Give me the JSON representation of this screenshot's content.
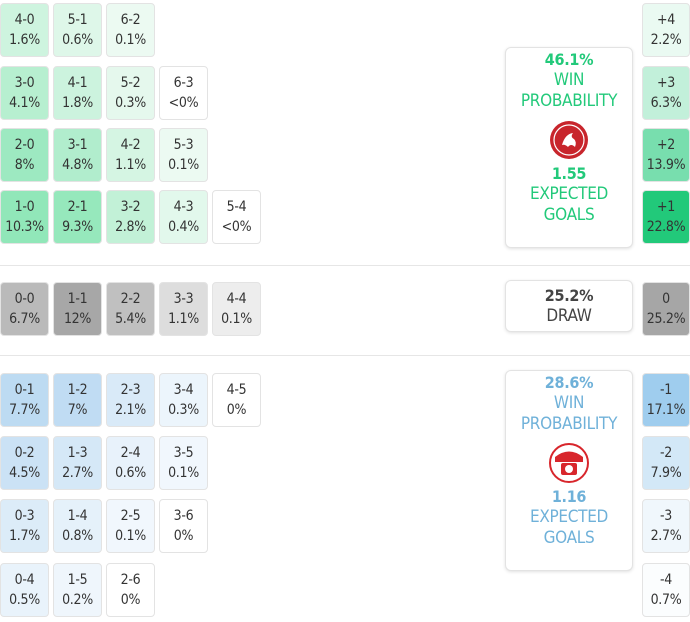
{
  "chart_data": {
    "type": "table",
    "home": {
      "win_probability": "46.1%",
      "win_label": "WIN PROBABILITY",
      "expected_goals": "1.55",
      "xg_label": "EXPECTED GOALS",
      "color": "#22c97a",
      "scores": [
        [
          "4-0",
          "1.6%"
        ],
        [
          "5-1",
          "0.6%"
        ],
        [
          "6-2",
          "0.1%"
        ],
        [
          "3-0",
          "4.1%"
        ],
        [
          "4-1",
          "1.8%"
        ],
        [
          "5-2",
          "0.3%"
        ],
        [
          "6-3",
          "<0%"
        ],
        [
          "2-0",
          "8%"
        ],
        [
          "3-1",
          "4.8%"
        ],
        [
          "4-2",
          "1.1%"
        ],
        [
          "5-3",
          "0.1%"
        ],
        [
          "1-0",
          "10.3%"
        ],
        [
          "2-1",
          "9.3%"
        ],
        [
          "3-2",
          "2.8%"
        ],
        [
          "4-3",
          "0.4%"
        ],
        [
          "5-4",
          "<0%"
        ]
      ],
      "margins": [
        [
          "+4",
          "2.2%"
        ],
        [
          "+3",
          "6.3%"
        ],
        [
          "+2",
          "13.9%"
        ],
        [
          "+1",
          "22.8%"
        ]
      ]
    },
    "draw": {
      "probability": "25.2%",
      "label": "DRAW",
      "scores": [
        [
          "0-0",
          "6.7%"
        ],
        [
          "1-1",
          "12%"
        ],
        [
          "2-2",
          "5.4%"
        ],
        [
          "3-3",
          "1.1%"
        ],
        [
          "4-4",
          "0.1%"
        ]
      ],
      "margin": [
        "0",
        "25.2%"
      ]
    },
    "away": {
      "win_probability": "28.6%",
      "win_label": "WIN PROBABILITY",
      "expected_goals": "1.16",
      "xg_label": "EXPECTED GOALS",
      "color": "#6fb1d9",
      "scores": [
        [
          "0-1",
          "7.7%"
        ],
        [
          "1-2",
          "7%"
        ],
        [
          "2-3",
          "2.1%"
        ],
        [
          "3-4",
          "0.3%"
        ],
        [
          "4-5",
          "0%"
        ],
        [
          "0-2",
          "4.5%"
        ],
        [
          "1-3",
          "2.7%"
        ],
        [
          "2-4",
          "0.6%"
        ],
        [
          "3-5",
          "0.1%"
        ],
        [
          "0-3",
          "1.7%"
        ],
        [
          "1-4",
          "0.8%"
        ],
        [
          "2-5",
          "0.1%"
        ],
        [
          "3-6",
          "0%"
        ],
        [
          "0-4",
          "0.5%"
        ],
        [
          "1-5",
          "0.2%"
        ],
        [
          "2-6",
          "0%"
        ]
      ],
      "margins": [
        [
          "-1",
          "17.1%"
        ],
        [
          "-2",
          "7.9%"
        ],
        [
          "-3",
          "2.7%"
        ],
        [
          "-4",
          "0.7%"
        ]
      ]
    }
  }
}
